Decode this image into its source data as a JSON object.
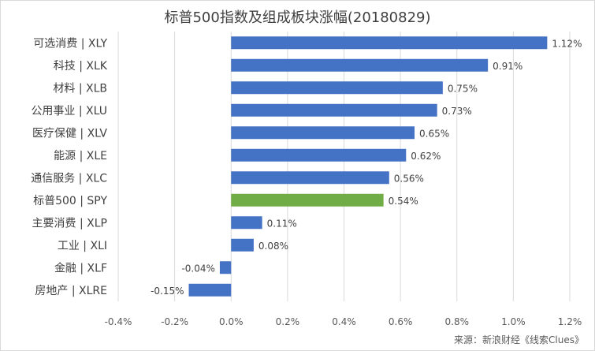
{
  "chart_data": {
    "type": "bar",
    "orientation": "horizontal",
    "title": "标普500指数及组成板块涨幅(20180829)",
    "categories": [
      "可选消费 | XLY",
      "科技 | XLK",
      "材料 | XLB",
      "公用事业 | XLU",
      "医疗保健 | XLV",
      "能源 | XLE",
      "通信服务 | XLC",
      "标普500 | SPY",
      "主要消费 | XLP",
      "工业 | XLI",
      "金融 | XLF",
      "房地产 | XLRE"
    ],
    "values": [
      1.12,
      0.91,
      0.75,
      0.73,
      0.65,
      0.62,
      0.56,
      0.54,
      0.11,
      0.08,
      -0.04,
      -0.15
    ],
    "data_labels": [
      "1.12%",
      "0.91%",
      "0.75%",
      "0.73%",
      "0.65%",
      "0.62%",
      "0.56%",
      "0.54%",
      "0.11%",
      "0.08%",
      "-0.04%",
      "-0.15%"
    ],
    "bar_colors": [
      "#4472c4",
      "#4472c4",
      "#4472c4",
      "#4472c4",
      "#4472c4",
      "#4472c4",
      "#4472c4",
      "#70ad47",
      "#4472c4",
      "#4472c4",
      "#4472c4",
      "#4472c4"
    ],
    "xlim": [
      -0.4,
      1.2
    ],
    "xticks": [
      -0.4,
      -0.2,
      0.0,
      0.2,
      0.4,
      0.6,
      0.8,
      1.0,
      1.2
    ],
    "xtick_labels": [
      "-0.4%",
      "-0.2%",
      "0.0%",
      "0.2%",
      "0.4%",
      "0.6%",
      "0.8%",
      "1.0%",
      "1.2%"
    ],
    "grid": "vertical",
    "grid_color": "#d9d9d9",
    "xlabel": "",
    "ylabel": ""
  },
  "source_note": "来源：新浪财经《线索Clues》"
}
